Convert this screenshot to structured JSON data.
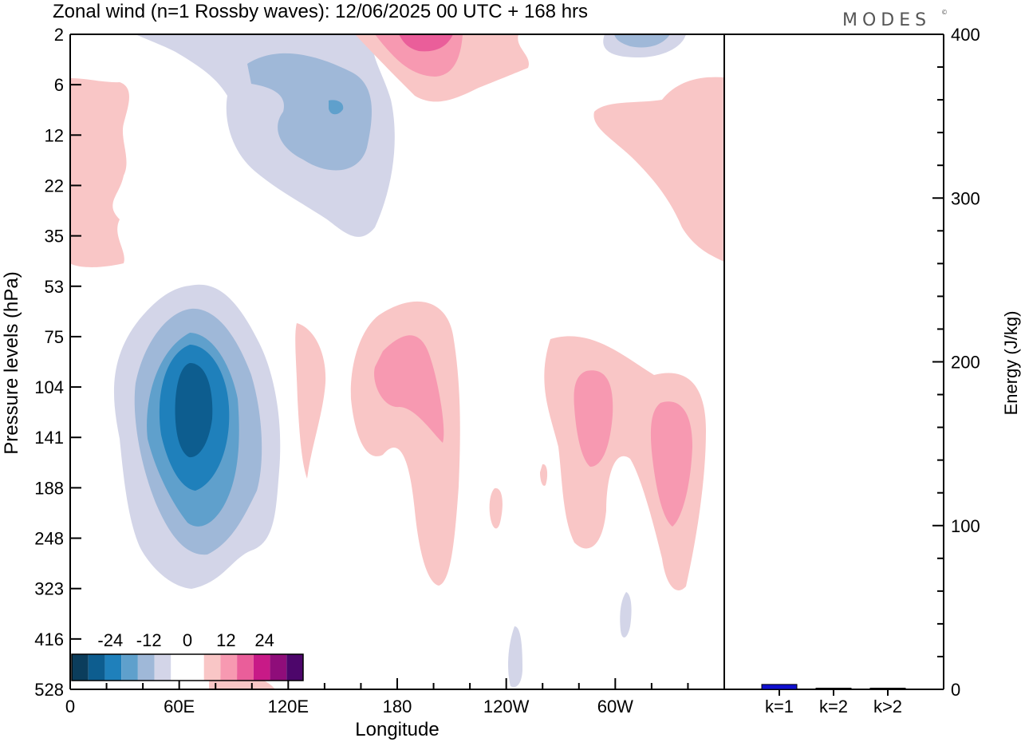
{
  "chart_data": {
    "type": "heatmap",
    "title": "Zonal wind (n=1 Rossby waves):  12/06/2025  00 UTC  + 168 hrs",
    "brand": "MODES",
    "brand_mark": "©",
    "xlabel": "Longitude",
    "ylabel": "Pressure levels (hPa)",
    "x_ticks": [
      "0",
      "60E",
      "120E",
      "180",
      "120W",
      "60W"
    ],
    "x_tick_degrees": [
      0,
      60,
      120,
      180,
      240,
      300
    ],
    "xlim": [
      0,
      360
    ],
    "y_levels": [
      "2",
      "6",
      "12",
      "22",
      "35",
      "53",
      "75",
      "104",
      "141",
      "188",
      "248",
      "323",
      "416",
      "528"
    ],
    "colorbar": {
      "labels": [
        "-24",
        "-12",
        "0",
        "12",
        "24"
      ],
      "colors": [
        "#0b3d5c",
        "#0d5d8f",
        "#1f80bb",
        "#5fa0cc",
        "#9fb8d8",
        "#d3d5e8",
        "#ffffff",
        "#ffffff",
        "#f9c6c6",
        "#f799b1",
        "#ea5e9a",
        "#c81a87",
        "#8f0d7a",
        "#4d066b"
      ]
    },
    "anomalies": [
      {
        "sign": "negative",
        "lon": 65,
        "level_hPa": "104-248",
        "peak": -24
      },
      {
        "sign": "negative",
        "lon": 145,
        "level_hPa": "6-22",
        "peak": -15
      },
      {
        "sign": "positive",
        "lon": 185,
        "level_hPa": "75-141",
        "peak": 12
      },
      {
        "sign": "positive",
        "lon": 290,
        "level_hPa": "104-188",
        "peak": 12
      },
      {
        "sign": "positive",
        "lon": 335,
        "level_hPa": "104-248",
        "peak": 12
      },
      {
        "sign": "positive",
        "lon": 5,
        "level_hPa": "6-35",
        "peak": 3
      },
      {
        "sign": "positive",
        "lon": 340,
        "level_hPa": "6-35",
        "peak": 3
      },
      {
        "sign": "positive",
        "lon": 195,
        "level_hPa": "2-6",
        "peak": 18
      }
    ],
    "energy": {
      "ylabel": "Energy (J/kg)",
      "ylim": [
        0,
        400
      ],
      "y_ticks": [
        "0",
        "100",
        "200",
        "300",
        "400"
      ],
      "categories": [
        "k=1",
        "k=2",
        "k>2"
      ],
      "values": [
        3,
        0.3,
        0.5
      ],
      "bar_colors": [
        "#1010d0",
        "#000000",
        "#000000"
      ]
    }
  }
}
